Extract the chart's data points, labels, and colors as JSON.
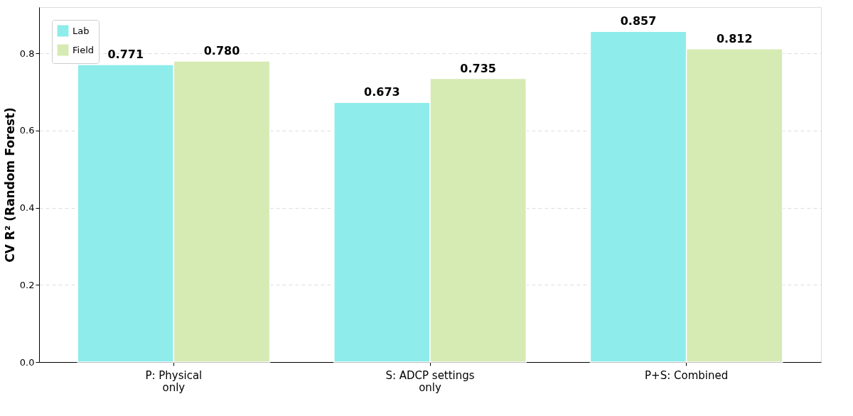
{
  "chart_data": {
    "type": "bar",
    "ylabel": "CV R² (Random Forest)",
    "categories": [
      "P: Physical\nonly",
      "S: ADCP settings\nonly",
      "P+S: Combined"
    ],
    "series": [
      {
        "name": "Lab",
        "color": "#8eeceb",
        "values": [
          0.771,
          0.673,
          0.857
        ],
        "value_labels": [
          "0.771",
          "0.673",
          "0.857"
        ]
      },
      {
        "name": "Field",
        "color": "#d6eab3",
        "values": [
          0.78,
          0.735,
          0.812
        ],
        "value_labels": [
          "0.780",
          "0.735",
          "0.812"
        ]
      }
    ],
    "ylim": [
      0,
      0.92
    ],
    "yticks": [
      {
        "value": 0,
        "label": "0.0"
      },
      {
        "value": 0.2,
        "label": "0.2"
      },
      {
        "value": 0.4,
        "label": "0.4"
      },
      {
        "value": 0.6,
        "label": "0.6"
      },
      {
        "value": 0.8,
        "label": "0.8"
      }
    ],
    "grid": "y",
    "legend": "top left"
  }
}
